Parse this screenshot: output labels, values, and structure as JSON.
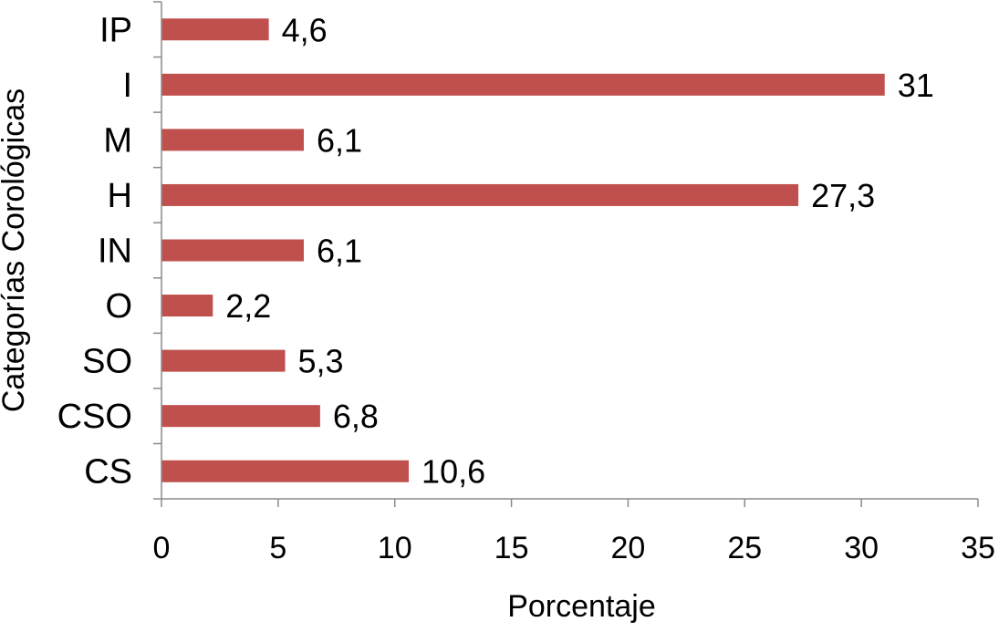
{
  "chart_data": {
    "type": "bar",
    "orientation": "horizontal",
    "categories": [
      "IP",
      "I",
      "M",
      "H",
      "IN",
      "O",
      "SO",
      "CSO",
      "CS"
    ],
    "values": [
      4.6,
      31,
      6.1,
      27.3,
      6.1,
      2.2,
      5.3,
      6.8,
      10.6
    ],
    "data_labels": [
      "4,6",
      "31",
      "6,1",
      "27,3",
      "6,1",
      "2,2",
      "5,3",
      "6,8",
      "10,6"
    ],
    "xlabel": "Porcentaje",
    "ylabel": "Categorías Corológicas",
    "xlim": [
      0,
      35
    ],
    "x_ticks": [
      0,
      5,
      10,
      15,
      20,
      25,
      30,
      35
    ],
    "x_tick_labels": [
      "0",
      "5",
      "10",
      "15",
      "20",
      "25",
      "30",
      "35"
    ],
    "grid": false,
    "legend": "none",
    "bar_color": "#c0504d"
  }
}
